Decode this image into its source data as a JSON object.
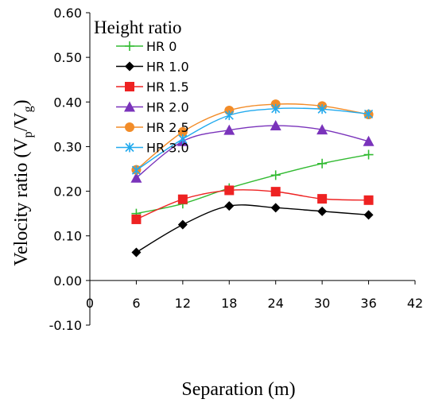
{
  "chart_data": {
    "type": "line",
    "xlabel": "Separation (m)",
    "ylabel": {
      "main": "Velocity ratio (V",
      "sub1": "p",
      "mid": "/V",
      "sub2": "g",
      "end": ")"
    },
    "xlim": [
      0,
      42
    ],
    "ylim": [
      -0.1,
      0.6
    ],
    "xticks": [
      "0",
      "6",
      "12",
      "18",
      "24",
      "30",
      "36",
      "42"
    ],
    "yticks": [
      "-0.10",
      "0.00",
      "0.10",
      "0.20",
      "0.30",
      "0.40",
      "0.50",
      "0.60"
    ],
    "legend": {
      "title": "Height ratio",
      "placement": "top-left"
    },
    "x": [
      6,
      12,
      18,
      24,
      30,
      36
    ],
    "series": [
      {
        "name": "HR 0",
        "color": "#33bb33",
        "marker": "plus",
        "values": [
          0.15,
          0.172,
          0.207,
          0.236,
          0.262,
          0.282
        ]
      },
      {
        "name": "HR 1.0",
        "color": "#000000",
        "marker": "diamond",
        "values": [
          0.063,
          0.125,
          0.167,
          0.163,
          0.155,
          0.147
        ]
      },
      {
        "name": "HR 1.5",
        "color": "#ee2222",
        "marker": "square",
        "values": [
          0.137,
          0.182,
          0.202,
          0.199,
          0.183,
          0.18
        ]
      },
      {
        "name": "HR 2.0",
        "color": "#7a33bb",
        "marker": "triangle",
        "values": [
          0.23,
          0.312,
          0.337,
          0.347,
          0.338,
          0.312
        ]
      },
      {
        "name": "HR 2.5",
        "color": "#f28c28",
        "marker": "circle",
        "values": [
          0.248,
          0.333,
          0.381,
          0.395,
          0.391,
          0.372
        ]
      },
      {
        "name": "HR 3.0",
        "color": "#22aaee",
        "marker": "star",
        "values": [
          0.247,
          0.317,
          0.37,
          0.385,
          0.384,
          0.373
        ]
      }
    ]
  }
}
